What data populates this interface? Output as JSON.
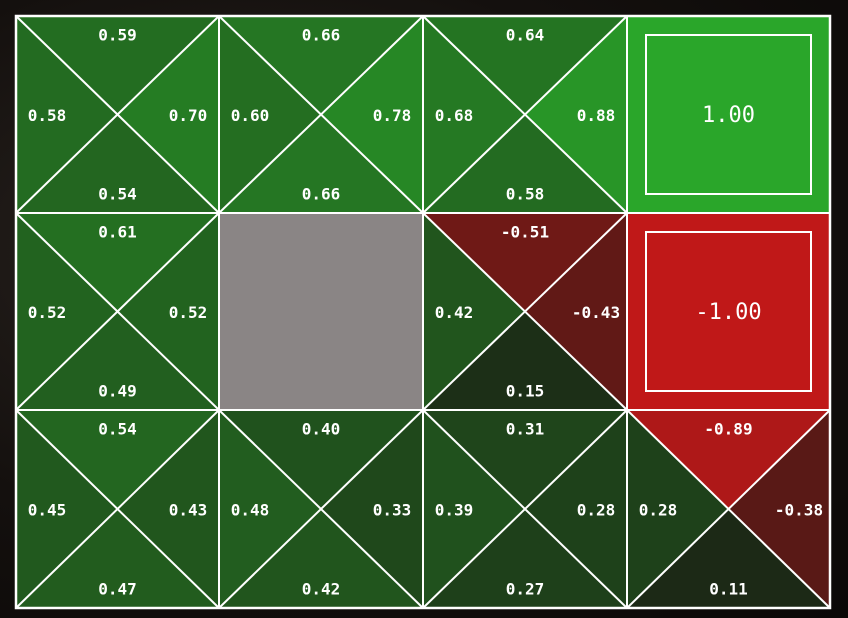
{
  "grid": {
    "rows": 3,
    "cols": 4,
    "cells": [
      [
        {
          "type": "q",
          "up": "0.59",
          "right": "0.70",
          "down": "0.54",
          "left": "0.58"
        },
        {
          "type": "q",
          "up": "0.66",
          "right": "0.78",
          "down": "0.66",
          "left": "0.60"
        },
        {
          "type": "q",
          "up": "0.64",
          "right": "0.88",
          "down": "0.58",
          "left": "0.68"
        },
        {
          "type": "terminal",
          "value": "1.00"
        }
      ],
      [
        {
          "type": "q",
          "up": "0.61",
          "right": "0.52",
          "down": "0.49",
          "left": "0.52"
        },
        {
          "type": "wall"
        },
        {
          "type": "q",
          "up": "-0.51",
          "right": "-0.43",
          "down": "0.15",
          "left": "0.42"
        },
        {
          "type": "terminal",
          "value": "-1.00"
        }
      ],
      [
        {
          "type": "q",
          "up": "0.54",
          "right": "0.43",
          "down": "0.47",
          "left": "0.45"
        },
        {
          "type": "q",
          "up": "0.40",
          "right": "0.33",
          "down": "0.42",
          "left": "0.48"
        },
        {
          "type": "q",
          "up": "0.31",
          "right": "0.28",
          "down": "0.27",
          "left": "0.39"
        },
        {
          "type": "q",
          "up": "-0.89",
          "right": "-0.38",
          "down": "0.11",
          "left": "0.28"
        }
      ]
    ]
  },
  "colors": {
    "positive": "#2aa62a",
    "negative": "#c01818",
    "zero": "#1a1a14",
    "wall": "#8a8585",
    "line": "#ffffff"
  }
}
